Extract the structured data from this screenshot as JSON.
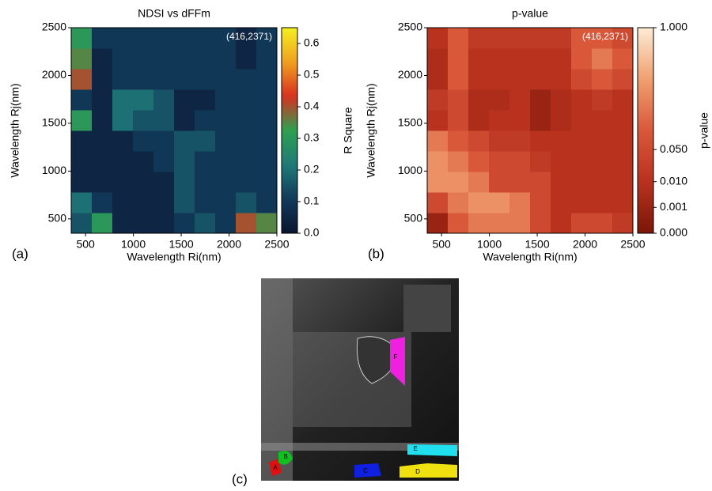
{
  "chart_data": [
    {
      "type": "heatmap",
      "title": "NDSI vs dFFm",
      "panel_label": "(a)",
      "x_label": "Wavelength Ri(nm)",
      "y_label": "Wavelength Rj(nm)",
      "colorbar_label": "R Square",
      "annotation": "(416,2371)",
      "xbins": [
        350,
        565,
        780,
        995,
        1210,
        1425,
        1640,
        1855,
        2070,
        2285,
        2500
      ],
      "ybins": [
        350,
        565,
        780,
        995,
        1210,
        1425,
        1640,
        1855,
        2070,
        2285,
        2500
      ],
      "xlim": [
        350,
        2500
      ],
      "ylim": [
        350,
        2500
      ],
      "xticks": [
        500,
        1000,
        1500,
        2000,
        2500
      ],
      "yticks": [
        500,
        1000,
        1500,
        2000,
        2500
      ],
      "zlim": [
        0,
        0.65
      ],
      "zticks": [
        {
          "value": 0,
          "label": "0.0"
        },
        0.1,
        0.2,
        0.3,
        0.4,
        0.5,
        0.6
      ],
      "colormap": [
        "#0a1530",
        "#123a5a",
        "#1f7a78",
        "#2fa050",
        "#d83020",
        "#f0a020",
        "#f5f020"
      ],
      "z": [
        [
          0.15,
          0.3,
          0.05,
          0.05,
          0.05,
          0.1,
          0.15,
          0.1,
          0.4,
          0.35
        ],
        [
          0.2,
          0.1,
          0.05,
          0.05,
          0.05,
          0.15,
          0.1,
          0.1,
          0.15,
          0.1
        ],
        [
          0.05,
          0.05,
          0.05,
          0.05,
          0.05,
          0.15,
          0.1,
          0.1,
          0.1,
          0.1
        ],
        [
          0.05,
          0.05,
          0.05,
          0.05,
          0.1,
          0.15,
          0.1,
          0.1,
          0.1,
          0.1
        ],
        [
          0.05,
          0.05,
          0.05,
          0.1,
          0.1,
          0.15,
          0.15,
          0.1,
          0.1,
          0.1
        ],
        [
          0.3,
          0.05,
          0.2,
          0.15,
          0.15,
          0.05,
          0.1,
          0.1,
          0.1,
          0.1
        ],
        [
          0.1,
          0.05,
          0.2,
          0.2,
          0.15,
          0.05,
          0.05,
          0.1,
          0.1,
          0.1
        ],
        [
          0.4,
          0.05,
          0.1,
          0.1,
          0.1,
          0.1,
          0.1,
          0.1,
          0.1,
          0.1
        ],
        [
          0.35,
          0.05,
          0.1,
          0.1,
          0.1,
          0.1,
          0.1,
          0.1,
          0.05,
          0.1
        ],
        [
          0.3,
          0.1,
          0.1,
          0.1,
          0.1,
          0.1,
          0.1,
          0.1,
          0.05,
          0.1
        ]
      ]
    },
    {
      "type": "heatmap",
      "title": "p-value",
      "panel_label": "(b)",
      "x_label": "Wavelength Ri(nm)",
      "y_label": "Wavelength Rj(nm)",
      "colorbar_label": "p-value",
      "annotation": "(416,2371)",
      "xbins": [
        350,
        565,
        780,
        995,
        1210,
        1425,
        1640,
        1855,
        2070,
        2285,
        2500
      ],
      "ybins": [
        350,
        565,
        780,
        995,
        1210,
        1425,
        1640,
        1855,
        2070,
        2285,
        2500
      ],
      "xlim": [
        350,
        2500
      ],
      "ylim": [
        350,
        2500
      ],
      "xticks": [
        500,
        1000,
        1500,
        2000,
        2500
      ],
      "yticks": [
        500,
        1000,
        1500,
        2000,
        2500
      ],
      "zlim": [
        0,
        1
      ],
      "z_exponent": 0.3,
      "zticks": [
        {
          "value": 0,
          "label": "0.000"
        },
        {
          "value": 0.001,
          "label": "0.001"
        },
        {
          "value": 0.01,
          "label": "0.010"
        },
        {
          "value": 0.05,
          "label": "0.050"
        },
        {
          "value": 1,
          "label": "1.000"
        }
      ],
      "colormap": [
        "#7a1608",
        "#b8321e",
        "#d9583a",
        "#f0a070",
        "#fdebd5"
      ],
      "z": [
        [
          0.001,
          0.1,
          0.2,
          0.2,
          0.2,
          0.05,
          0.01,
          0.05,
          0.05,
          0.02
        ],
        [
          0.05,
          0.2,
          0.3,
          0.3,
          0.2,
          0.05,
          0.01,
          0.01,
          0.01,
          0.01
        ],
        [
          0.3,
          0.3,
          0.2,
          0.05,
          0.05,
          0.05,
          0.01,
          0.01,
          0.01,
          0.01
        ],
        [
          0.3,
          0.2,
          0.1,
          0.05,
          0.05,
          0.02,
          0.01,
          0.01,
          0.01,
          0.01
        ],
        [
          0.2,
          0.1,
          0.05,
          0.02,
          0.02,
          0.01,
          0.01,
          0.01,
          0.01,
          0.01
        ],
        [
          0.01,
          0.05,
          0.005,
          0.01,
          0.01,
          0.001,
          0.005,
          0.01,
          0.01,
          0.01
        ],
        [
          0.02,
          0.05,
          0.005,
          0.005,
          0.01,
          0.001,
          0.005,
          0.01,
          0.02,
          0.01
        ],
        [
          0.005,
          0.1,
          0.01,
          0.01,
          0.01,
          0.01,
          0.01,
          0.05,
          0.1,
          0.05
        ],
        [
          0.005,
          0.1,
          0.01,
          0.01,
          0.01,
          0.01,
          0.01,
          0.1,
          0.2,
          0.1
        ],
        [
          0.01,
          0.1,
          0.02,
          0.02,
          0.02,
          0.02,
          0.02,
          0.1,
          0.1,
          0.05
        ]
      ]
    }
  ],
  "panel_c": {
    "label": "(c)",
    "regions": [
      {
        "label": "A",
        "color": "#e01010"
      },
      {
        "label": "B",
        "color": "#10c020"
      },
      {
        "label": "C",
        "color": "#1020e0"
      },
      {
        "label": "D",
        "color": "#f0e010"
      },
      {
        "label": "E",
        "color": "#20e0f0"
      },
      {
        "label": "F",
        "color": "#f020e0"
      }
    ]
  }
}
